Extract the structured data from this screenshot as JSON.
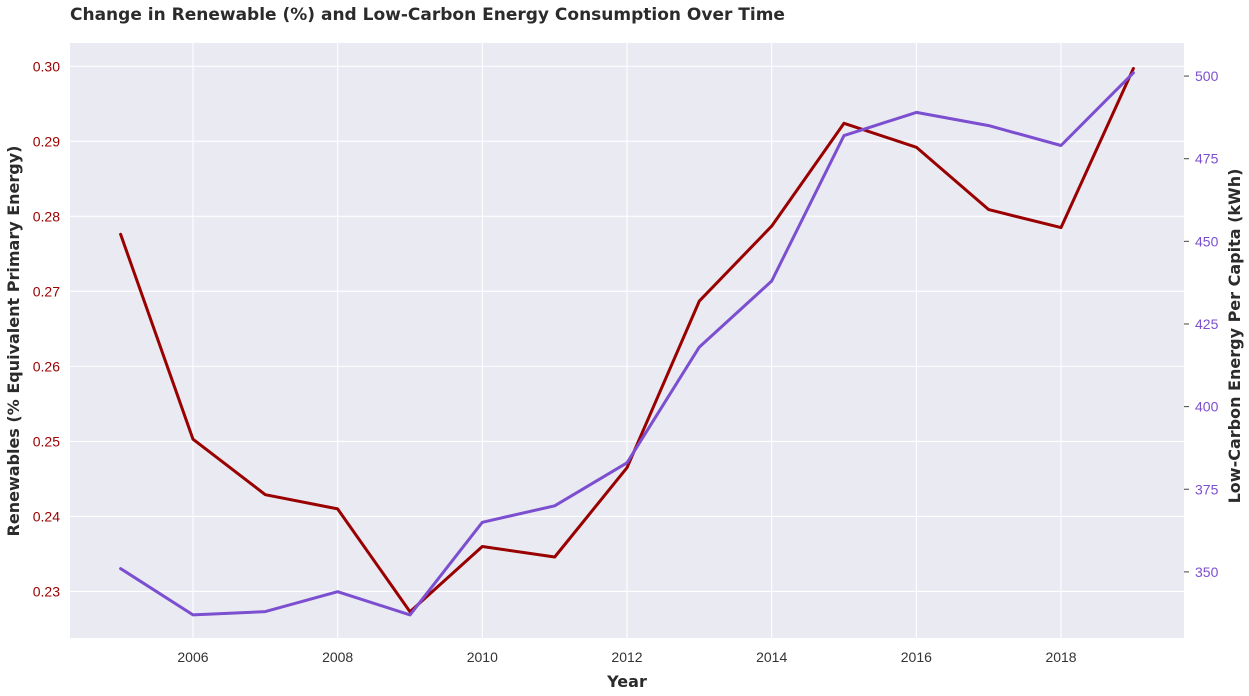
{
  "chart_data": {
    "type": "line",
    "title": "Change in Renewable (%) and Low-Carbon Energy Consumption Over Time",
    "xlabel": "Year",
    "ylabel_left": "Renewables (% Equivalent Primary Energy)",
    "ylabel_right": "Low-Carbon Energy Per Capita (kWh)",
    "x": [
      2005,
      2006,
      2007,
      2008,
      2009,
      2010,
      2011,
      2012,
      2013,
      2014,
      2015,
      2016,
      2017,
      2018,
      2019
    ],
    "xlim": [
      2004.3,
      2019.7
    ],
    "x_ticks": [
      2006,
      2008,
      2010,
      2012,
      2014,
      2016,
      2018
    ],
    "y_left_lim": [
      0.2238,
      0.3031
    ],
    "y_left_ticks": [
      "0.23",
      "0.24",
      "0.25",
      "0.26",
      "0.27",
      "0.28",
      "0.29",
      "0.30"
    ],
    "y_right_lim": [
      330,
      510
    ],
    "y_right_ticks": [
      "350",
      "375",
      "400",
      "425",
      "450",
      "475",
      "500"
    ],
    "grid": true,
    "series": [
      {
        "axis": "left",
        "color": "#990000",
        "values": [
          0.2776,
          0.2503,
          0.2429,
          0.241,
          0.2273,
          0.236,
          0.2346,
          0.2465,
          0.2687,
          0.2787,
          0.2924,
          0.2892,
          0.2809,
          0.2785,
          0.2997
        ]
      },
      {
        "axis": "right",
        "color": "#7b4fd0",
        "values": [
          351,
          337,
          338,
          344,
          337,
          365,
          370,
          383,
          418,
          438,
          482,
          489,
          485,
          479,
          501
        ]
      }
    ],
    "colors": {
      "plot_background": "#eaeaf2",
      "grid": "#ffffff",
      "left_tick_color": "#990000",
      "right_tick_color": "#7b4fd0"
    }
  }
}
